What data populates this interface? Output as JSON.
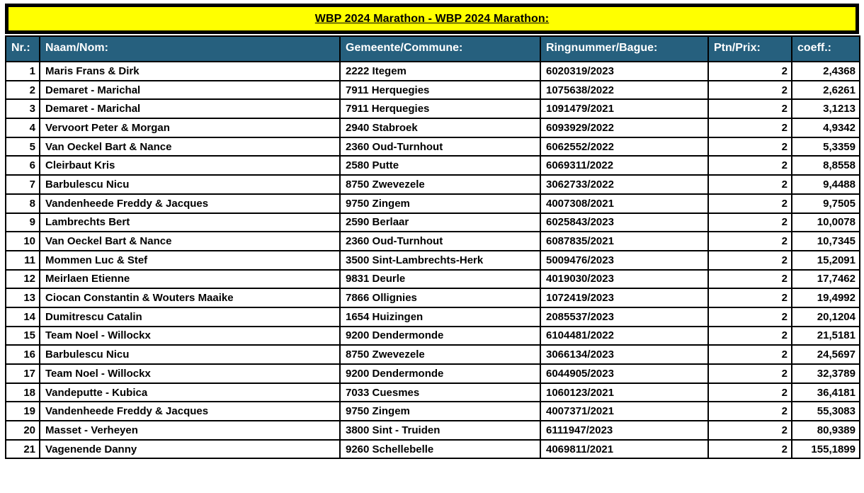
{
  "banner": {
    "title": "WBP 2024 Marathon - WBP 2024 Marathon:"
  },
  "colors": {
    "banner_bg": "#ffff00",
    "header_bg": "#26607e",
    "header_text": "#ffffff",
    "border": "#000000",
    "row_bg": "#ffffff",
    "text": "#000000"
  },
  "table": {
    "columns": [
      {
        "key": "nr",
        "label": "Nr.:",
        "align": "right"
      },
      {
        "key": "name",
        "label": "Naam/Nom:",
        "align": "left"
      },
      {
        "key": "commune",
        "label": "Gemeente/Commune:",
        "align": "left"
      },
      {
        "key": "ring",
        "label": "Ringnummer/Bague:",
        "align": "left"
      },
      {
        "key": "ptn",
        "label": "Ptn/Prix:",
        "align": "right"
      },
      {
        "key": "coeff",
        "label": "coeff.:",
        "align": "right"
      }
    ],
    "rows": [
      [
        "1",
        "Maris Frans & Dirk",
        "2222 Itegem",
        "6020319/2023",
        "2",
        "2,4368"
      ],
      [
        "2",
        "Demaret - Marichal",
        "7911 Herquegies",
        "1075638/2022",
        "2",
        "2,6261"
      ],
      [
        "3",
        "Demaret - Marichal",
        "7911 Herquegies",
        "1091479/2021",
        "2",
        "3,1213"
      ],
      [
        "4",
        "Vervoort Peter & Morgan",
        "2940 Stabroek",
        "6093929/2022",
        "2",
        "4,9342"
      ],
      [
        "5",
        "Van Oeckel Bart & Nance",
        "2360 Oud-Turnhout",
        "6062552/2022",
        "2",
        "5,3359"
      ],
      [
        "6",
        "Cleirbaut Kris",
        "2580 Putte",
        "6069311/2022",
        "2",
        "8,8558"
      ],
      [
        "7",
        "Barbulescu Nicu",
        "8750 Zwevezele",
        "3062733/2022",
        "2",
        "9,4488"
      ],
      [
        "8",
        "Vandenheede Freddy & Jacques",
        "9750 Zingem",
        "4007308/2021",
        "2",
        "9,7505"
      ],
      [
        "9",
        "Lambrechts Bert",
        "2590 Berlaar",
        "6025843/2023",
        "2",
        "10,0078"
      ],
      [
        "10",
        "Van Oeckel Bart & Nance",
        "2360 Oud-Turnhout",
        "6087835/2021",
        "2",
        "10,7345"
      ],
      [
        "11",
        "Mommen Luc & Stef",
        "3500 Sint-Lambrechts-Herk",
        "5009476/2023",
        "2",
        "15,2091"
      ],
      [
        "12",
        "Meirlaen Etienne",
        "9831 Deurle",
        "4019030/2023",
        "2",
        "17,7462"
      ],
      [
        "13",
        "Ciocan Constantin & Wouters Maaike",
        "7866 Ollignies",
        "1072419/2023",
        "2",
        "19,4992"
      ],
      [
        "14",
        "Dumitrescu Catalin",
        "1654 Huizingen",
        "2085537/2023",
        "2",
        "20,1204"
      ],
      [
        "15",
        "Team Noel - Willockx",
        "9200 Dendermonde",
        "6104481/2022",
        "2",
        "21,5181"
      ],
      [
        "16",
        "Barbulescu Nicu",
        "8750 Zwevezele",
        "3066134/2023",
        "2",
        "24,5697"
      ],
      [
        "17",
        "Team Noel - Willockx",
        "9200 Dendermonde",
        "6044905/2023",
        "2",
        "32,3789"
      ],
      [
        "18",
        "Vandeputte - Kubica",
        "7033 Cuesmes",
        "1060123/2021",
        "2",
        "36,4181"
      ],
      [
        "19",
        "Vandenheede Freddy & Jacques",
        "9750 Zingem",
        "4007371/2021",
        "2",
        "55,3083"
      ],
      [
        "20",
        "Masset - Verheyen",
        "3800 Sint - Truiden",
        "6111947/2023",
        "2",
        "80,9389"
      ],
      [
        "21",
        "Vagenende Danny",
        "9260 Schellebelle",
        "4069811/2021",
        "2",
        "155,1899"
      ]
    ]
  }
}
